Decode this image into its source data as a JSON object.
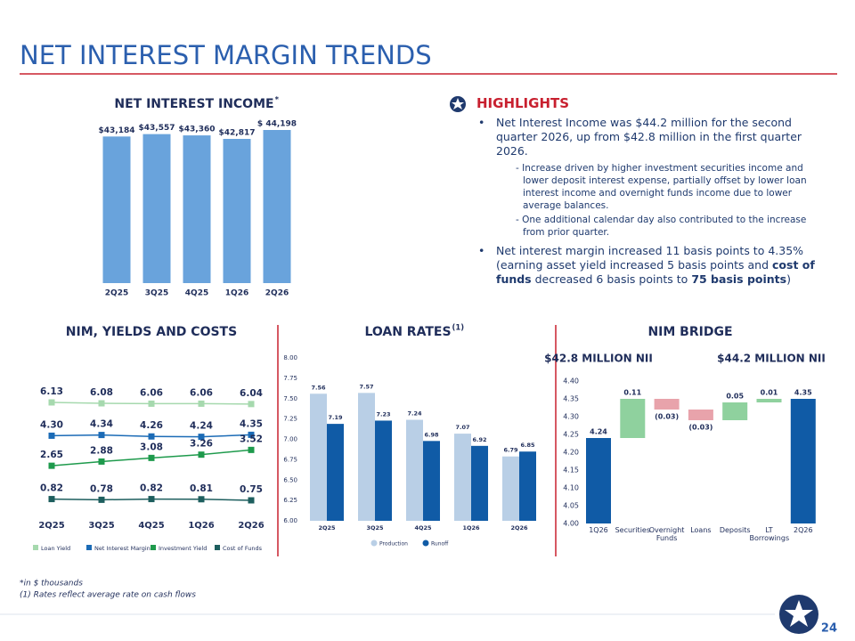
{
  "slide": {
    "title": "NET INTEREST MARGIN TRENDS",
    "highlights": {
      "heading": "HIGHLIGHTS",
      "bullets": [
        {
          "text": "Net Interest Income was $44.2 million for the second quarter 2026, up from $42.8 million in the first quarter 2026.",
          "subitems": [
            "- Increase driven by higher investment securities income and lower deposit interest expense, partially offset by lower loan interest income and overnight funds income due to lower average balances.",
            "- One additional calendar day also contributed to the increase from prior quarter."
          ]
        },
        {
          "segments": [
            {
              "text": "Net interest margin increased 11 basis points to 4.35% (earning asset yield increased 5 basis points and ",
              "bold": false
            },
            {
              "text": "cost of funds",
              "bold": true
            },
            {
              "text": " decreased 6 basis points to ",
              "bold": false
            },
            {
              "text": "75 basis points",
              "bold": true
            },
            {
              "text": ")",
              "bold": false
            }
          ]
        }
      ]
    },
    "footnotes": [
      "*in $ thousands",
      "(1) Rates reflect average rate on cash flows"
    ],
    "page_number": "24"
  },
  "chart_data": [
    {
      "type": "bar",
      "title": "NET INTEREST INCOME",
      "title_superscript": "*",
      "categories": [
        "2Q25",
        "3Q25",
        "4Q25",
        "1Q26",
        "2Q26"
      ],
      "values": [
        43184,
        43557,
        43360,
        42817,
        44198
      ],
      "value_labels": [
        "$43,184",
        "$43,557",
        "$43,360",
        "$42,817",
        "$ 44,198"
      ],
      "color": "#69a3dc"
    },
    {
      "type": "line",
      "title": "NIM, YIELDS AND COSTS",
      "categories": [
        "2Q25",
        "3Q25",
        "4Q25",
        "1Q26",
        "2Q26"
      ],
      "marker": "square",
      "series": [
        {
          "name": "Loan Yield",
          "color": "#a6d9ae",
          "values": [
            6.13,
            6.08,
            6.06,
            6.06,
            6.04
          ],
          "value_labels": [
            "6.13",
            "6.08",
            "6.06",
            "6.06",
            "6.04"
          ]
        },
        {
          "name": "Net Interest Margin",
          "color": "#1b6bb6",
          "values": [
            4.3,
            4.34,
            4.26,
            4.24,
            4.35
          ],
          "value_labels": [
            "4.30",
            "4.34",
            "4.26",
            "4.24",
            "4.35"
          ]
        },
        {
          "name": "Investment Yield",
          "color": "#1e9a4c",
          "values": [
            2.65,
            2.88,
            3.08,
            3.26,
            3.52
          ],
          "value_labels": [
            "2.65",
            "2.88",
            "3.08",
            "3.26",
            "3.52"
          ]
        },
        {
          "name": "Cost of Funds",
          "color": "#1d5e5e",
          "values": [
            0.82,
            0.78,
            0.82,
            0.81,
            0.75
          ],
          "value_labels": [
            "0.82",
            "0.78",
            "0.82",
            "0.81",
            "0.75"
          ]
        }
      ]
    },
    {
      "type": "grouped_bar",
      "title": "LOAN RATES",
      "title_superscript": "(1)",
      "categories": [
        "2Q25",
        "3Q25",
        "4Q25",
        "1Q26",
        "2Q26"
      ],
      "series": [
        {
          "name": "Production",
          "color": "#b9cfe6",
          "values": [
            7.56,
            7.57,
            7.24,
            7.07,
            6.79
          ]
        },
        {
          "name": "Runoff",
          "color": "#105ba6",
          "values": [
            7.19,
            7.23,
            6.98,
            6.92,
            6.85
          ]
        }
      ],
      "ylim": [
        6,
        8
      ],
      "yticks": [
        {
          "value": 6,
          "label": "6.00"
        },
        6.25,
        {
          "value": 6.5,
          "label": "6.50"
        },
        6.75,
        {
          "value": 7,
          "label": "7.00"
        },
        7.25,
        {
          "value": 7.5,
          "label": "7.50"
        },
        7.75,
        {
          "value": 8,
          "label": "8.00"
        }
      ]
    },
    {
      "type": "waterfall",
      "title": "NIM BRIDGE",
      "subtitles": [
        "$42.8 MILLION NII",
        "$44.2 MILLION NII"
      ],
      "categories": [
        "1Q26",
        "Securities",
        "Overnight Funds",
        "Loans",
        "Deposits",
        "LT Borrowings",
        "2Q26"
      ],
      "values": [
        4.24,
        0.11,
        -0.03,
        -0.03,
        0.05,
        0.01,
        4.35
      ],
      "value_labels": [
        "4.24",
        "0.11",
        "(0.03)",
        "(0.03)",
        "0.05",
        "0.01",
        "4.35"
      ],
      "colors": [
        "#105ba6",
        "#8fd19e",
        "#e8a3ab",
        "#e8a3ab",
        "#8fd19e",
        "#8fd19e",
        "#105ba6"
      ],
      "ylim": [
        4,
        4.4
      ],
      "yticks": [
        {
          "value": 4,
          "label": "4.00"
        },
        4.05,
        {
          "value": 4.1,
          "label": "4.10"
        },
        4.15,
        {
          "value": 4.2,
          "label": "4.20"
        },
        4.25,
        {
          "value": 4.3,
          "label": "4.30"
        },
        4.35,
        {
          "value": 4.4,
          "label": "4.40"
        }
      ]
    }
  ]
}
